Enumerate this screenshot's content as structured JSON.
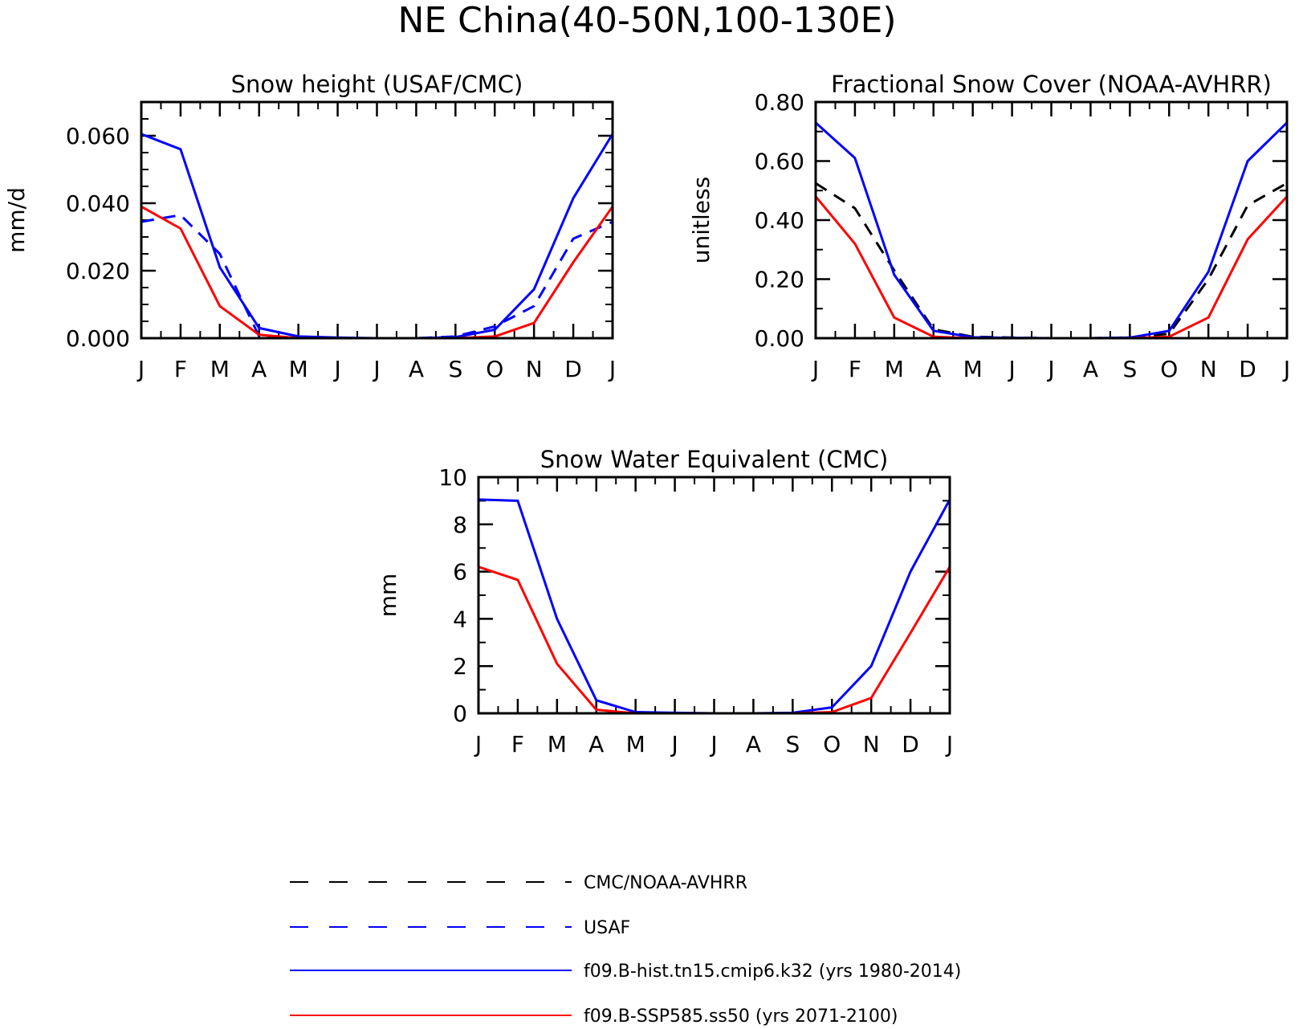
{
  "figure_title": "NE China(40-50N,100-130E)",
  "legend": [
    {
      "name": "CMC/NOAA-AVHRR",
      "color": "#000000",
      "dash": true
    },
    {
      "name": "USAF",
      "color": "#0000ff",
      "dash": true
    },
    {
      "name": "f09.B-hist.tn15.cmip6.k32 (yrs 1980-2014)",
      "color": "#0000ff",
      "dash": false
    },
    {
      "name": "f09.B-SSP585.ss50 (yrs 2071-2100)",
      "color": "#ff0000",
      "dash": false
    }
  ],
  "chart_data": [
    {
      "id": "snow-height",
      "type": "line",
      "title": "Snow height (USAF/CMC)",
      "ylabel": "mm/d",
      "xlabel": "",
      "categories": [
        "J",
        "F",
        "M",
        "A",
        "M",
        "J",
        "J",
        "A",
        "S",
        "O",
        "N",
        "D",
        "J"
      ],
      "ylim": [
        0,
        0.07
      ],
      "yticks": [
        0.0,
        0.02,
        0.04,
        0.06
      ],
      "ytick_labels": [
        "0.000",
        "0.020",
        "0.040",
        "0.060"
      ],
      "yminor": 0.005,
      "series": [
        {
          "name": "CMC/NOAA-AVHRR",
          "color": "#000000",
          "dash": true,
          "values": [
            0,
            0,
            0,
            0,
            0,
            0,
            0,
            0,
            0,
            0,
            0,
            0,
            0
          ]
        },
        {
          "name": "USAF",
          "color": "#0000ff",
          "dash": true,
          "values": [
            0.0345,
            0.0365,
            0.025,
            0.0005,
            0.0,
            0.0,
            0.0,
            0.0,
            0.0005,
            0.0035,
            0.0095,
            0.0295,
            0.0345
          ]
        },
        {
          "name": "f09.B-hist.tn15.cmip6.k32 (yrs 1980-2014)",
          "color": "#0000ff",
          "dash": false,
          "values": [
            0.0605,
            0.056,
            0.021,
            0.003,
            0.0005,
            0.0002,
            0.0,
            0.0,
            0.0003,
            0.0025,
            0.0145,
            0.0415,
            0.0605
          ]
        },
        {
          "name": "f09.B-SSP585.ss50 (yrs 2071-2100)",
          "color": "#ff0000",
          "dash": false,
          "values": [
            0.039,
            0.0325,
            0.0095,
            0.001,
            0.0,
            0.0,
            0.0,
            0.0,
            0.0,
            0.0005,
            0.0045,
            0.0225,
            0.039
          ]
        }
      ]
    },
    {
      "id": "fractional-snow-cover",
      "type": "line",
      "title": "Fractional Snow Cover (NOAA-AVHRR)",
      "ylabel": "unitless",
      "xlabel": "",
      "categories": [
        "J",
        "F",
        "M",
        "A",
        "M",
        "J",
        "J",
        "A",
        "S",
        "O",
        "N",
        "D",
        "J"
      ],
      "ylim": [
        0,
        0.8
      ],
      "yticks": [
        0.0,
        0.2,
        0.4,
        0.6,
        0.8
      ],
      "ytick_labels": [
        "0.00",
        "0.20",
        "0.40",
        "0.60",
        "0.80"
      ],
      "yminor": 0.1,
      "series": [
        {
          "name": "CMC/NOAA-AVHRR",
          "color": "#000000",
          "dash": true,
          "values": [
            0.525,
            0.44,
            0.23,
            0.03,
            0.005,
            0.002,
            0.0,
            0.0,
            0.002,
            0.015,
            0.2,
            0.45,
            0.525
          ]
        },
        {
          "name": "f09.B-hist.tn15.cmip6.k32 (yrs 1980-2014)",
          "color": "#0000ff",
          "dash": false,
          "values": [
            0.73,
            0.61,
            0.215,
            0.025,
            0.003,
            0.001,
            0.0,
            0.0,
            0.002,
            0.025,
            0.225,
            0.6,
            0.73
          ]
        },
        {
          "name": "f09.B-SSP585.ss50 (yrs 2071-2100)",
          "color": "#ff0000",
          "dash": false,
          "values": [
            0.48,
            0.32,
            0.07,
            0.005,
            0.0,
            0.0,
            0.0,
            0.0,
            0.0,
            0.005,
            0.07,
            0.335,
            0.48
          ]
        }
      ]
    },
    {
      "id": "snow-water-equivalent",
      "type": "line",
      "title": "Snow Water Equivalent (CMC)",
      "ylabel": "mm",
      "xlabel": "",
      "categories": [
        "J",
        "F",
        "M",
        "A",
        "M",
        "J",
        "J",
        "A",
        "S",
        "O",
        "N",
        "D",
        "J"
      ],
      "ylim": [
        0,
        10
      ],
      "yticks": [
        0,
        2,
        4,
        6,
        8,
        10
      ],
      "ytick_labels": [
        "0",
        "2",
        "4",
        "6",
        "8",
        "10"
      ],
      "yminor": 1,
      "series": [
        {
          "name": "CMC/NOAA-AVHRR",
          "color": "#000000",
          "dash": true,
          "values": [
            0,
            0,
            0,
            0,
            0,
            0,
            0,
            0,
            0,
            0,
            0,
            0,
            0
          ]
        },
        {
          "name": "f09.B-hist.tn15.cmip6.k32 (yrs 1980-2014)",
          "color": "#0000ff",
          "dash": false,
          "values": [
            9.05,
            9.0,
            4.0,
            0.55,
            0.05,
            0.02,
            0.0,
            0.0,
            0.02,
            0.25,
            2.0,
            6.0,
            9.05
          ]
        },
        {
          "name": "f09.B-SSP585.ss50 (yrs 2071-2100)",
          "color": "#ff0000",
          "dash": false,
          "values": [
            6.2,
            5.65,
            2.1,
            0.15,
            0.0,
            0.0,
            0.0,
            0.0,
            0.0,
            0.05,
            0.65,
            3.4,
            6.2
          ]
        }
      ]
    }
  ]
}
